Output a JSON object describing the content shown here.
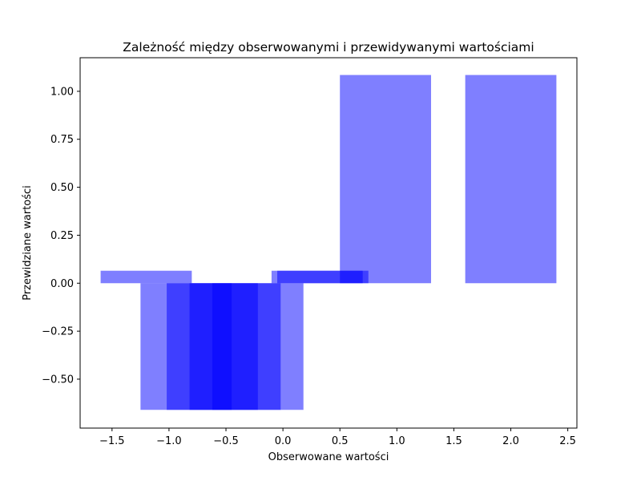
{
  "chart_data": {
    "type": "bar",
    "title": "Zależność między obserwowanymi i przewidywanymi wartościami",
    "xlabel": "Obserwowane wartości",
    "ylabel": "Przewidziane wartości",
    "xlim": [
      -1.78,
      2.58
    ],
    "ylim": [
      -0.755,
      1.175
    ],
    "xticks": [
      "−1.5",
      "−1.0",
      "−0.5",
      "0.0",
      "0.5",
      "1.0",
      "1.5",
      "2.0",
      "2.5"
    ],
    "xtick_values": [
      -1.5,
      -1.0,
      -0.5,
      0.0,
      0.5,
      1.0,
      1.5,
      2.0,
      2.5
    ],
    "yticks": [
      "−0.50",
      "−0.25",
      "0.00",
      "0.25",
      "0.50",
      "0.75",
      "1.00"
    ],
    "ytick_values": [
      -0.5,
      -0.25,
      0.0,
      0.25,
      0.5,
      0.75,
      1.0
    ],
    "bar_width": 0.8,
    "bar_color": "#0000ff",
    "bar_alpha": 0.5,
    "grid": false,
    "bars": [
      {
        "x": -1.2,
        "y": 0.065
      },
      {
        "x": -0.85,
        "y": -0.66
      },
      {
        "x": -0.62,
        "y": -0.66
      },
      {
        "x": -0.42,
        "y": -0.66
      },
      {
        "x": -0.22,
        "y": -0.66
      },
      {
        "x": 0.3,
        "y": 0.065
      },
      {
        "x": 0.35,
        "y": 0.065
      },
      {
        "x": 0.9,
        "y": 1.085
      },
      {
        "x": 2.0,
        "y": 1.085
      }
    ]
  }
}
